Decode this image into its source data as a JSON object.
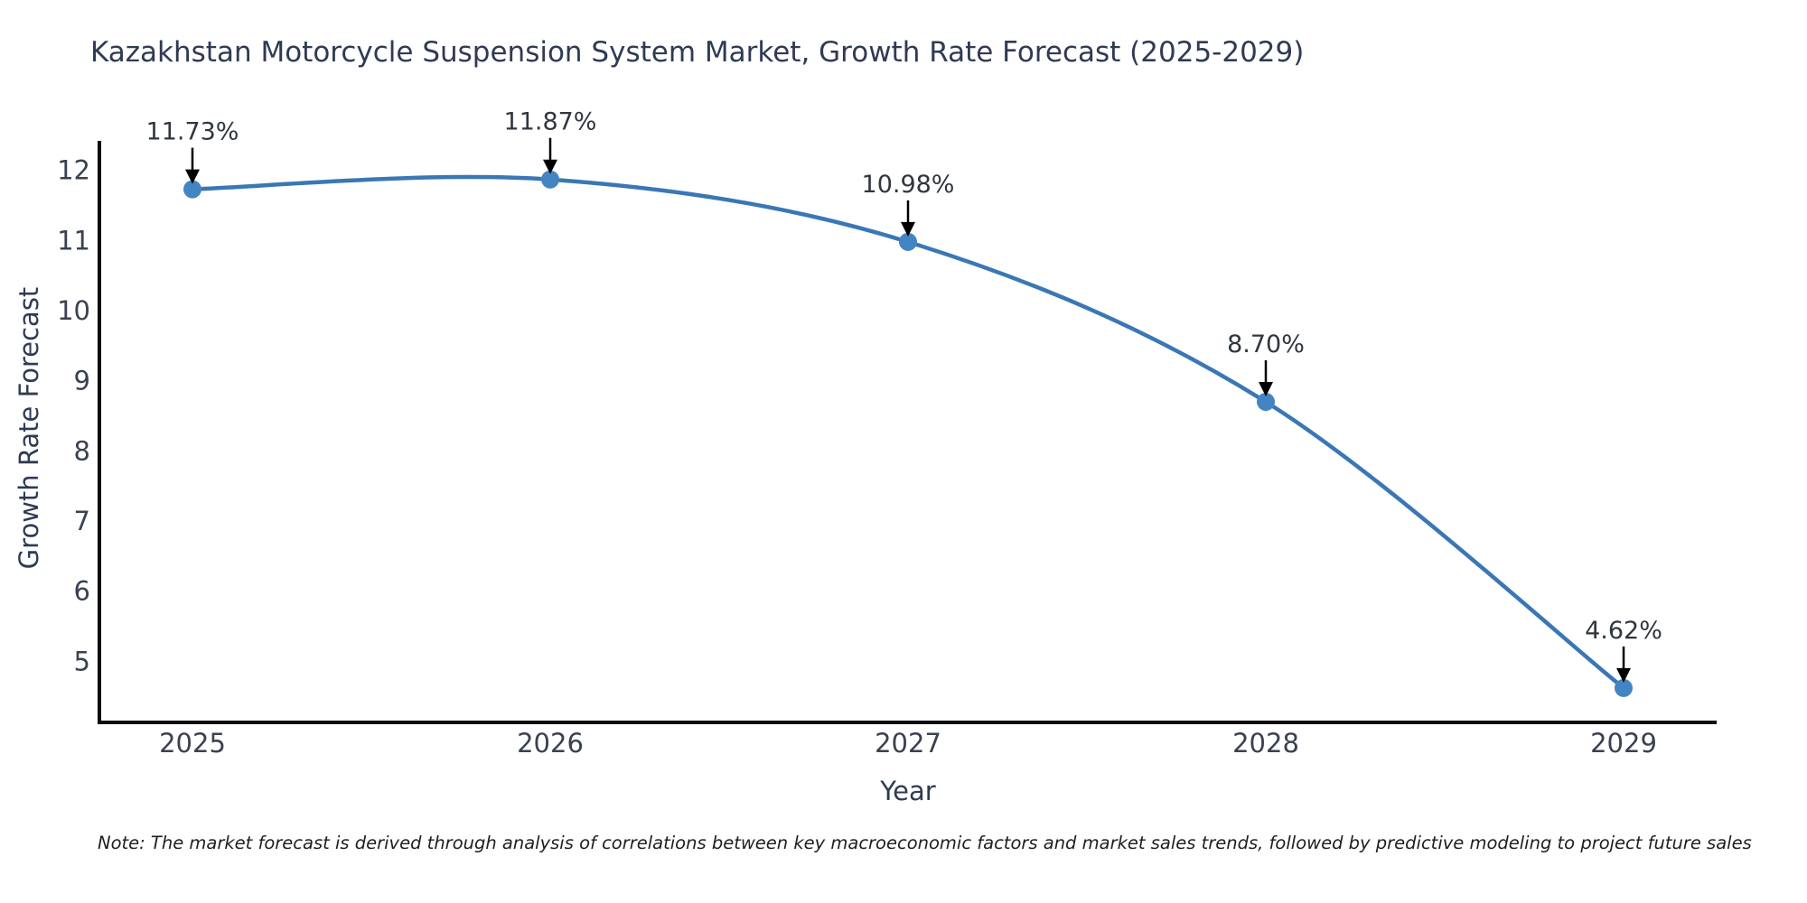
{
  "chart_data": {
    "type": "line",
    "title": "Kazakhstan Motorcycle Suspension System Market, Growth Rate Forecast (2025-2029)",
    "xlabel": "Year",
    "ylabel": "Growth Rate Forecast",
    "categories": [
      "2025",
      "2026",
      "2027",
      "2028",
      "2029"
    ],
    "series": [
      {
        "name": "Growth Rate Forecast",
        "values": [
          11.73,
          11.87,
          10.98,
          8.7,
          4.62
        ]
      }
    ],
    "point_labels": [
      "11.73%",
      "11.87%",
      "10.98%",
      "8.70%",
      "4.62%"
    ],
    "yticks": [
      5,
      6,
      7,
      8,
      9,
      10,
      11,
      12
    ],
    "ylim": [
      4.13,
      12.42
    ],
    "grid": false,
    "legend_position": "none",
    "colors": {
      "line": "#3a77b4",
      "marker": "#4285c2",
      "axis": "#0d0d0d",
      "tick_label": "#3a4150",
      "annotation": "#30363f",
      "title_text": "#2f3b54"
    },
    "note": "Note: The market forecast is derived through analysis of correlations between key macroeconomic factors and market sales trends, followed by predictive modeling to project future sales"
  }
}
